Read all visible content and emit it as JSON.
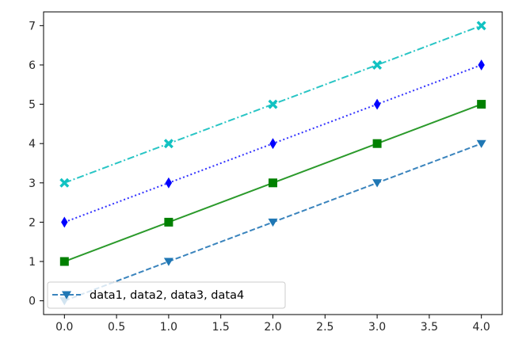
{
  "chart_data": {
    "type": "line",
    "title": "",
    "xlabel": "",
    "ylabel": "",
    "x": [
      0,
      1,
      2,
      3,
      4
    ],
    "xlim": [
      -0.2,
      4.2
    ],
    "ylim": [
      -0.35,
      7.35
    ],
    "xticks": [
      0.0,
      0.5,
      1.0,
      1.5,
      2.0,
      2.5,
      3.0,
      3.5,
      4.0
    ],
    "xtick_labels": [
      "0.0",
      "0.5",
      "1.0",
      "1.5",
      "2.0",
      "2.5",
      "3.0",
      "3.5",
      "4.0"
    ],
    "yticks": [
      0,
      1,
      2,
      3,
      4,
      5,
      6,
      7
    ],
    "ytick_labels": [
      "0",
      "1",
      "2",
      "3",
      "4",
      "5",
      "6",
      "7"
    ],
    "grid": false,
    "legend": {
      "placement": "lower-left",
      "label": "data1, data2, data3, data4"
    },
    "series": [
      {
        "values": [
          0,
          1,
          2,
          3,
          4
        ],
        "color": "#3a84bd",
        "marker_color": "#1f77b4",
        "linestyle": "dashed",
        "marker": "triangle-down"
      },
      {
        "values": [
          1,
          2,
          3,
          4,
          5
        ],
        "color": "#2b9a2b",
        "marker_color": "#008000",
        "linestyle": "solid",
        "marker": "square"
      },
      {
        "values": [
          2,
          3,
          4,
          5,
          6
        ],
        "color": "#3232ff",
        "marker_color": "#0000ff",
        "linestyle": "dotted",
        "marker": "diamond"
      },
      {
        "values": [
          3,
          4,
          5,
          6,
          7
        ],
        "color": "#29c5c5",
        "marker_color": "#11c2c2",
        "linestyle": "dashdot",
        "marker": "x-filled"
      }
    ]
  }
}
